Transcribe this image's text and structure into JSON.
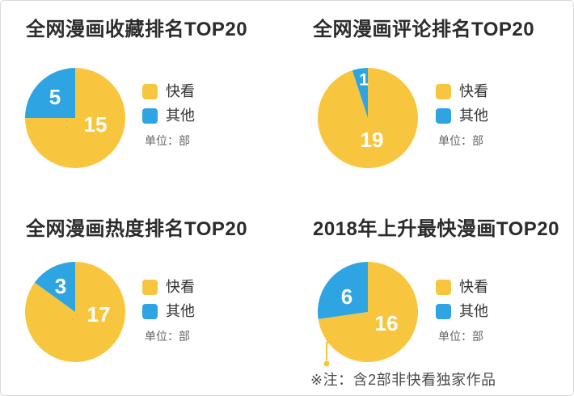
{
  "page": {
    "background": "#ffffff",
    "border_color": "#d9d9d9"
  },
  "colors": {
    "kuaikan_yellow": "#F8C63E",
    "other_blue": "#2FA4E2",
    "title_text": "#2b2b2b",
    "legend_text": "#333333",
    "unit_text": "#666666",
    "note_text": "#4a4a4a",
    "slice_value_text": "#ffffff"
  },
  "chart_data": [
    {
      "type": "pie",
      "title": "全网漫画收藏排名TOP20",
      "unit_label": "单位：部",
      "legend": [
        "快看",
        "其他"
      ],
      "legend_position": "right",
      "start_angle": "top",
      "direction": "clockwise",
      "series": [
        {
          "name": "快看",
          "value": 15,
          "color": "#F8C63E",
          "label_offset": [
            25,
            8
          ],
          "label_size": 26
        },
        {
          "name": "其他",
          "value": 5,
          "color": "#2FA4E2",
          "label_offset": [
            -25,
            -26
          ],
          "label_size": 26
        }
      ]
    },
    {
      "type": "pie",
      "title": "全网漫画评论排名TOP20",
      "unit_label": "单位：部",
      "legend": [
        "快看",
        "其他"
      ],
      "legend_position": "right",
      "start_angle": "top",
      "direction": "clockwise",
      "series": [
        {
          "name": "快看",
          "value": 19,
          "color": "#F8C63E",
          "label_offset": [
            5,
            27
          ],
          "label_size": 26
        },
        {
          "name": "其他",
          "value": 1,
          "color": "#2FA4E2",
          "label_offset": [
            -5,
            -47
          ],
          "label_size": 21
        }
      ]
    },
    {
      "type": "pie",
      "title": "全网漫画热度排名TOP20",
      "unit_label": "单位：部",
      "legend": [
        "快看",
        "其他"
      ],
      "legend_position": "right",
      "start_angle": "top",
      "direction": "clockwise",
      "series": [
        {
          "name": "快看",
          "value": 17,
          "color": "#F8C63E",
          "label_offset": [
            29,
            3
          ],
          "label_size": 26
        },
        {
          "name": "其他",
          "value": 3,
          "color": "#2FA4E2",
          "label_offset": [
            -18,
            -32
          ],
          "label_size": 26
        }
      ]
    },
    {
      "type": "pie",
      "title": "2018年上升最快漫画TOP20",
      "unit_label": "单位：部",
      "legend": [
        "快看",
        "其他"
      ],
      "legend_position": "right",
      "start_angle": "top",
      "direction": "clockwise",
      "note": "※注：含2部非快看独家作品",
      "series": [
        {
          "name": "快看",
          "value": 16,
          "color": "#F8C63E",
          "label_offset": [
            23,
            14
          ],
          "label_size": 26
        },
        {
          "name": "其他",
          "value": 6,
          "color": "#2FA4E2",
          "label_offset": [
            -26,
            -19
          ],
          "label_size": 26
        }
      ]
    }
  ]
}
